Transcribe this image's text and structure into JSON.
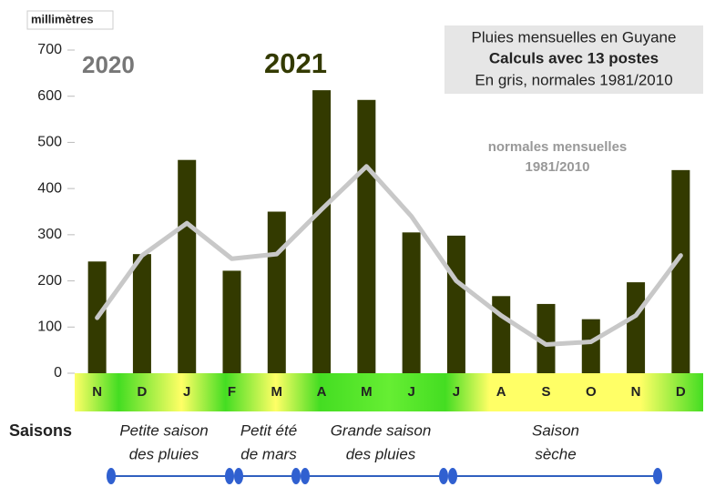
{
  "chart_data": {
    "type": "bar",
    "y_label": "millimètres",
    "year_labels": [
      "2020",
      "2021"
    ],
    "title_lines": [
      "Pluies mensuelles en Guyane",
      "Calculs avec 13 postes",
      "En gris, normales 1981/2010"
    ],
    "annotation_lines": [
      "normales mensuelles",
      "1981/2010"
    ],
    "categories": [
      "N",
      "D",
      "J",
      "F",
      "M",
      "A",
      "M",
      "J",
      "J",
      "A",
      "S",
      "O",
      "N",
      "D"
    ],
    "series": [
      {
        "type": "bar",
        "color": "#333a00",
        "values": [
          242,
          258,
          462,
          222,
          350,
          613,
          592,
          305,
          298,
          167,
          150,
          117,
          197,
          440
        ]
      },
      {
        "type": "line",
        "color": "#c8c8c8",
        "values": [
          120,
          255,
          325,
          248,
          258,
          355,
          448,
          340,
          200,
          125,
          62,
          68,
          125,
          255
        ]
      }
    ],
    "ylim": [
      0,
      700
    ],
    "yticks": [
      0,
      100,
      200,
      300,
      400,
      500,
      600,
      700
    ],
    "grid": false,
    "seasons_label": "Saisons",
    "seasons": [
      [
        "Petite saison",
        "des pluies"
      ],
      [
        "Petit été",
        "de mars"
      ],
      [
        "Grande saison",
        "des pluies"
      ],
      [
        "Saison",
        "sèche"
      ]
    ]
  }
}
